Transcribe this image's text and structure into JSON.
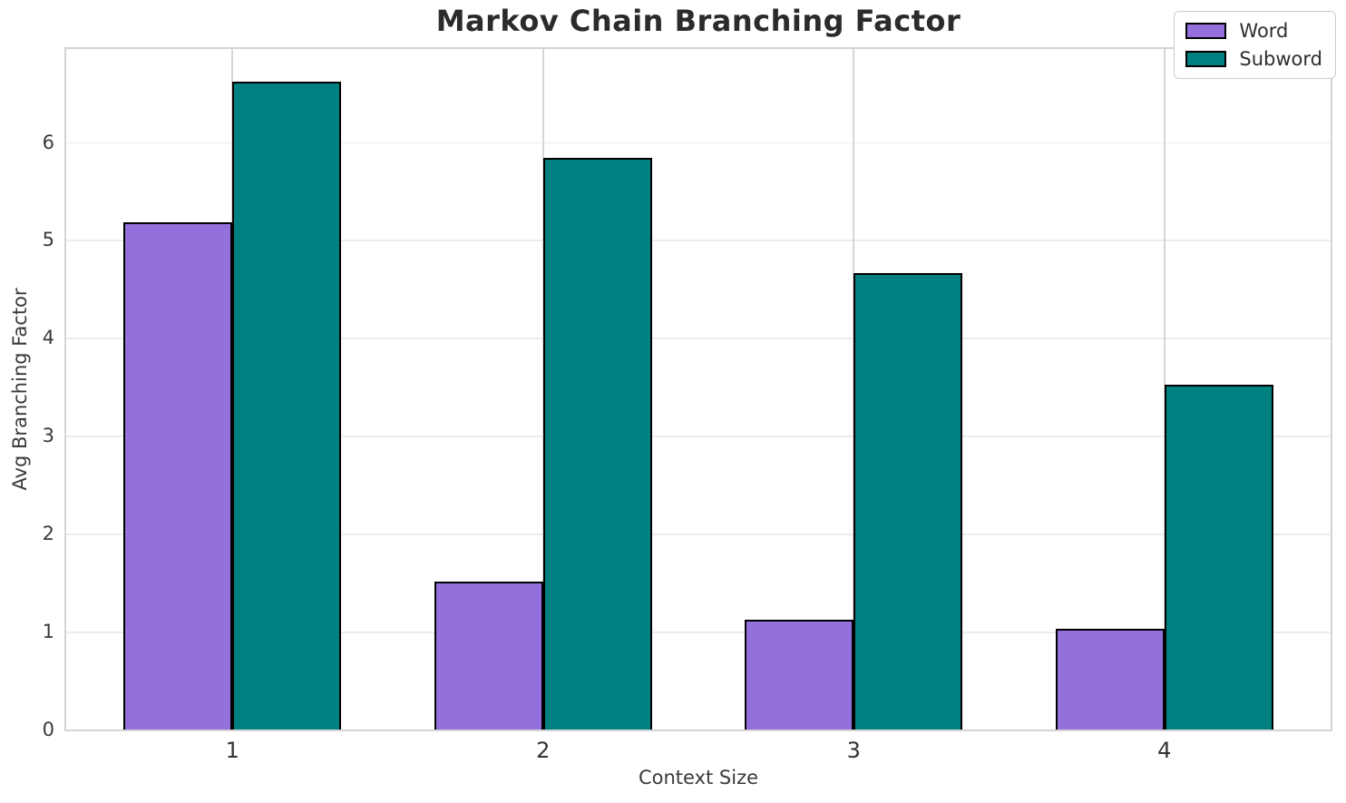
{
  "chart_data": {
    "type": "bar",
    "title": "Markov Chain Branching Factor",
    "xlabel": "Context Size",
    "ylabel": "Avg Branching Factor",
    "categories": [
      "1",
      "2",
      "3",
      "4"
    ],
    "series": [
      {
        "name": "Word",
        "color": "#9370db",
        "values": [
          5.18,
          1.51,
          1.12,
          1.03
        ]
      },
      {
        "name": "Subword",
        "color": "#008080",
        "values": [
          6.62,
          5.84,
          4.66,
          3.52
        ]
      }
    ],
    "ylim": [
      0,
      6.95
    ],
    "yticks": [
      0,
      1,
      2,
      3,
      4,
      5,
      6
    ],
    "grid": true,
    "legend_position": "upper right",
    "bar_edge_color": "#000000",
    "colors": {
      "background": "#ffffff",
      "spine": "#d4d4d4",
      "hgrid": "#ebebeb",
      "vgrid": "#d6d6d6",
      "title_text": "#2b2b2b",
      "tick_text": "#3a3a3a"
    }
  }
}
